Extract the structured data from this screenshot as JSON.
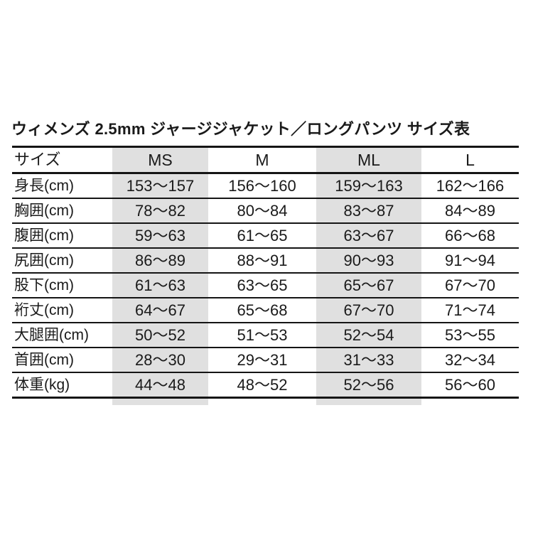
{
  "title": "ウィメンズ 2.5mm ジャージジャケット／ロングパンツ サイズ表",
  "colors": {
    "background": "#ffffff",
    "text": "#1a1a1a",
    "rule_line": "#151515",
    "column_highlight": "#e0e0e0"
  },
  "table": {
    "header": {
      "label": "サイズ",
      "sizes": [
        "MS",
        "M",
        "ML",
        "L"
      ]
    },
    "highlighted_columns": [
      "MS",
      "ML"
    ],
    "rows": [
      {
        "label": "身長(cm)",
        "values": [
          "153～157",
          "156～160",
          "159～163",
          "162～166"
        ]
      },
      {
        "label": "胸囲(cm)",
        "values": [
          "78～82",
          "80～84",
          "83～87",
          "84～89"
        ]
      },
      {
        "label": "腹囲(cm)",
        "values": [
          "59～63",
          "61～65",
          "63～67",
          "66～68"
        ]
      },
      {
        "label": "尻囲(cm)",
        "values": [
          "86～89",
          "88～91",
          "90～93",
          "91～94"
        ]
      },
      {
        "label": "股下(cm)",
        "values": [
          "61～63",
          "63～65",
          "65～67",
          "67～70"
        ]
      },
      {
        "label": "裄丈(cm)",
        "values": [
          "64～67",
          "65～68",
          "67～70",
          "71～74"
        ]
      },
      {
        "label": "大腿囲(cm)",
        "values": [
          "50～52",
          "51～53",
          "52～54",
          "53～55"
        ]
      },
      {
        "label": "首囲(cm)",
        "values": [
          "28～30",
          "29～31",
          "31～33",
          "32～34"
        ]
      },
      {
        "label": "体重(kg)",
        "values": [
          "44～48",
          "48～52",
          "52～56",
          "56～60"
        ]
      }
    ]
  }
}
